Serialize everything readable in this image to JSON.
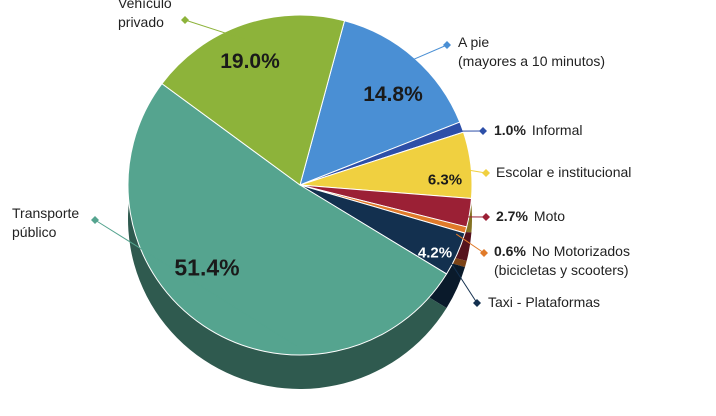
{
  "chart_data": {
    "type": "pie",
    "categories": [
      "A pie\n(mayores a 10 minutos)",
      "Informal",
      "Escolar e institucional",
      "Moto",
      "No Motorizados\n(bicicletas y scooters)",
      "Taxi - Plataformas",
      "Transporte\npúblico",
      "Vehículo\nprivado"
    ],
    "values": [
      14.8,
      1.0,
      6.3,
      2.7,
      0.6,
      4.2,
      51.4,
      19.0
    ],
    "value_labels": [
      "14.8%",
      "1.0%",
      "6.3%",
      "2.7%",
      "0.6%",
      "4.2%",
      "51.4%",
      "19.0%"
    ],
    "colors": [
      "#4a8fd4",
      "#2d4fa8",
      "#f0d040",
      "#9b2035",
      "#e07a2a",
      "#13304f",
      "#55a48f",
      "#8db33a"
    ]
  }
}
